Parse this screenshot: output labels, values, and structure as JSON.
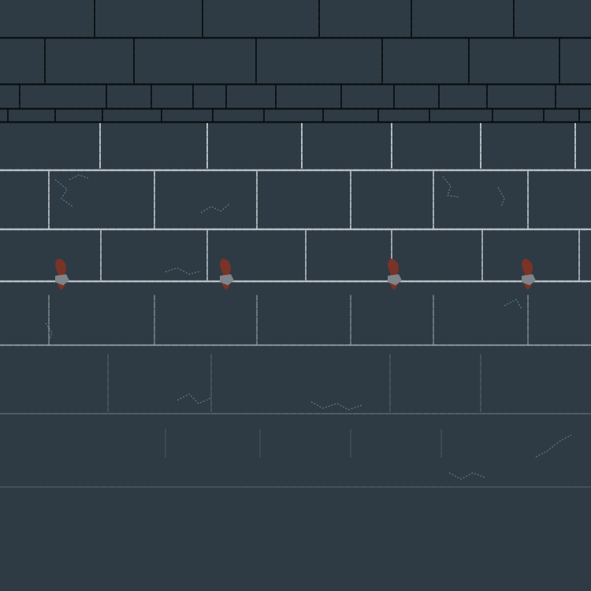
{
  "scene": {
    "background": "#2e3b44",
    "mortar_dark": "#0b0f12",
    "mortar_light": "#c7cdd1",
    "mortar_dim": "#6f7c84",
    "crack_color": "#6f8f99",
    "torch_flame": "#7a3327",
    "torch_bracket": "#7d858a",
    "torch_count": 4
  }
}
